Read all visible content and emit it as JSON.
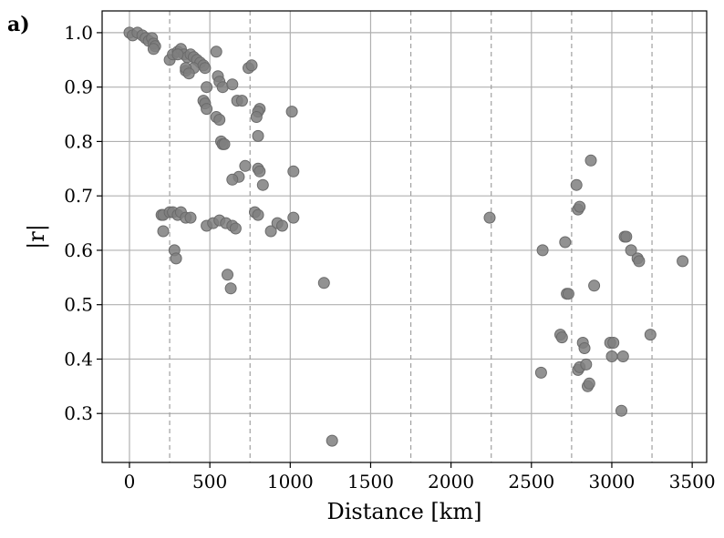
{
  "chart_data": {
    "type": "scatter",
    "panel_label": "a)",
    "xlabel": "Distance [km]",
    "ylabel": "|r|",
    "xlim": [
      -170,
      3590
    ],
    "ylim": [
      0.21,
      1.04
    ],
    "xticks": [
      0,
      500,
      1000,
      1500,
      2000,
      2500,
      3000,
      3500
    ],
    "xtick_labels": [
      "0",
      "500",
      "1000",
      "1500",
      "2000",
      "2500",
      "3000",
      "3500"
    ],
    "yticks": [
      0.3,
      0.4,
      0.5,
      0.6,
      0.7,
      0.8,
      0.9,
      1.0
    ],
    "ytick_labels": [
      "0.3",
      "0.4",
      "0.5",
      "0.6",
      "0.7",
      "0.8",
      "0.9",
      "1.0"
    ],
    "vlines": [
      250,
      750,
      1750,
      2250,
      2750,
      3250
    ],
    "grid": true,
    "marker_color": "#7f7f7f",
    "x": [
      0,
      20,
      50,
      80,
      100,
      120,
      140,
      150,
      160,
      150,
      250,
      270,
      300,
      320,
      340,
      360,
      380,
      400,
      420,
      440,
      300,
      350,
      400,
      460,
      470,
      350,
      370,
      480,
      540,
      550,
      560,
      580,
      460,
      470,
      480,
      540,
      560,
      570,
      640,
      670,
      700,
      740,
      760,
      720,
      800,
      810,
      800,
      790,
      580,
      590,
      680,
      640,
      800,
      810,
      830,
      1010,
      1020,
      200,
      210,
      250,
      270,
      300,
      320,
      350,
      380,
      480,
      520,
      560,
      600,
      640,
      660,
      780,
      800,
      880,
      920,
      950,
      1020,
      210,
      280,
      290,
      610,
      630,
      1210,
      1260,
      2240,
      2560,
      2570,
      2710,
      2720,
      2730,
      2780,
      2790,
      2800,
      2870,
      2890,
      2680,
      2690,
      2790,
      2800,
      2820,
      2830,
      2840,
      2850,
      2860,
      2990,
      3010,
      3000,
      3070,
      3080,
      3090,
      3120,
      3160,
      3170,
      3060,
      3240,
      3440
    ],
    "y": [
      1.0,
      0.995,
      1.0,
      0.995,
      0.99,
      0.985,
      0.99,
      0.98,
      0.975,
      0.97,
      0.95,
      0.96,
      0.965,
      0.97,
      0.96,
      0.955,
      0.96,
      0.955,
      0.95,
      0.945,
      0.96,
      0.93,
      0.935,
      0.94,
      0.935,
      0.935,
      0.925,
      0.9,
      0.965,
      0.92,
      0.91,
      0.9,
      0.875,
      0.87,
      0.86,
      0.845,
      0.84,
      0.8,
      0.905,
      0.875,
      0.875,
      0.935,
      0.94,
      0.755,
      0.81,
      0.86,
      0.855,
      0.845,
      0.795,
      0.795,
      0.735,
      0.73,
      0.75,
      0.745,
      0.72,
      0.855,
      0.745,
      0.665,
      0.665,
      0.67,
      0.67,
      0.665,
      0.67,
      0.66,
      0.66,
      0.645,
      0.65,
      0.655,
      0.65,
      0.645,
      0.64,
      0.67,
      0.665,
      0.635,
      0.65,
      0.645,
      0.66,
      0.635,
      0.6,
      0.585,
      0.555,
      0.53,
      0.54,
      0.25,
      0.66,
      0.375,
      0.6,
      0.615,
      0.52,
      0.52,
      0.72,
      0.675,
      0.68,
      0.765,
      0.535,
      0.445,
      0.44,
      0.38,
      0.385,
      0.43,
      0.42,
      0.39,
      0.35,
      0.355,
      0.43,
      0.43,
      0.405,
      0.405,
      0.625,
      0.625,
      0.6,
      0.585,
      0.58,
      0.305,
      0.445,
      0.58
    ]
  }
}
